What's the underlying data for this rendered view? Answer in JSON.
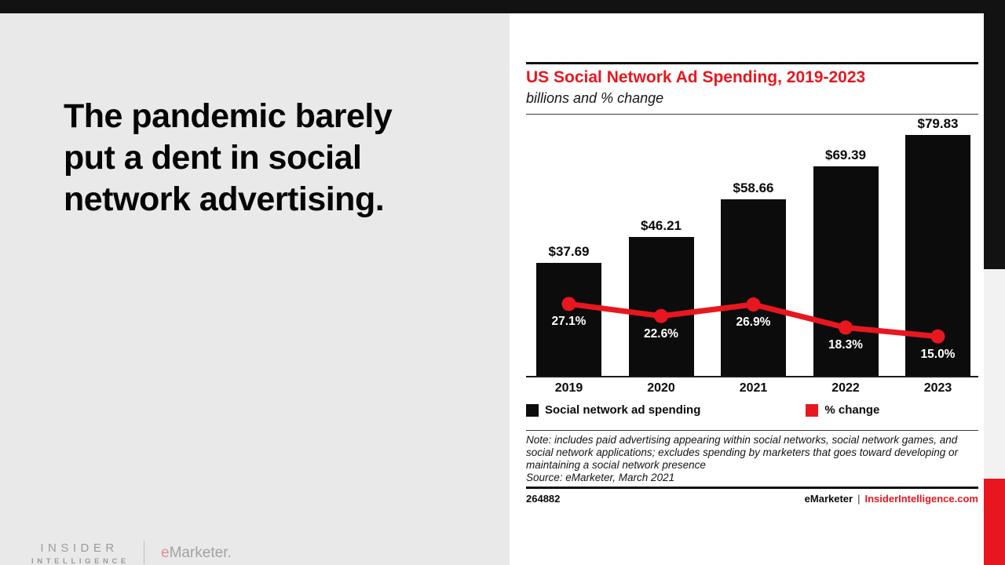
{
  "slide": {
    "headline": "The pandemic barely\nput a dent in social\nnetwork advertising."
  },
  "logo": {
    "line1": "INSIDER",
    "line2": "INTELLIGENCE",
    "brand_e": "e",
    "brand_rest": "Marketer."
  },
  "chart_data": {
    "type": "combo",
    "categories": [
      "2019",
      "2020",
      "2021",
      "2022",
      "2023"
    ],
    "series": [
      {
        "name": "Social network ad spending",
        "type": "bar",
        "unit": "USD billions",
        "values": [
          37.69,
          46.21,
          58.66,
          69.39,
          79.83
        ],
        "data_labels": [
          "$37.69",
          "$46.21",
          "$58.66",
          "$69.39",
          "$79.83"
        ],
        "color": "#0c0c0c"
      },
      {
        "name": "% change",
        "type": "line",
        "unit": "percent",
        "values": [
          27.1,
          22.6,
          26.9,
          18.3,
          15.0
        ],
        "data_labels": [
          "27.1%",
          "22.6%",
          "26.9%",
          "18.3%",
          "15.0%"
        ],
        "color": "#e8171f"
      }
    ],
    "title": "US Social Network Ad Spending, 2019-2023",
    "subtitle": "billions and % change",
    "xlabel": "",
    "ylabel": "",
    "grid": false,
    "legend_position": "bottom",
    "ylim_bar": [
      0,
      85.5
    ],
    "ylim_line": [
      0,
      96.5
    ]
  },
  "chart_notes": {
    "note": "Note: includes paid advertising appearing within social networks, social network games, and\nsocial network applications; excludes spending by marketers that goes toward developing or\nmaintaining a social network presence",
    "source": "Source: eMarketer, March 2021"
  },
  "chart_footer": {
    "id": "264882",
    "brand": "eMarketer",
    "divider": "|",
    "site": "InsiderIntelligence.com"
  },
  "colors": {
    "accent_red": "#e8171f",
    "bar_black": "#0c0c0c",
    "panel_gray": "#e9e9e9",
    "frame_black": "#121212",
    "edge_gray": "#f2f2f2"
  }
}
